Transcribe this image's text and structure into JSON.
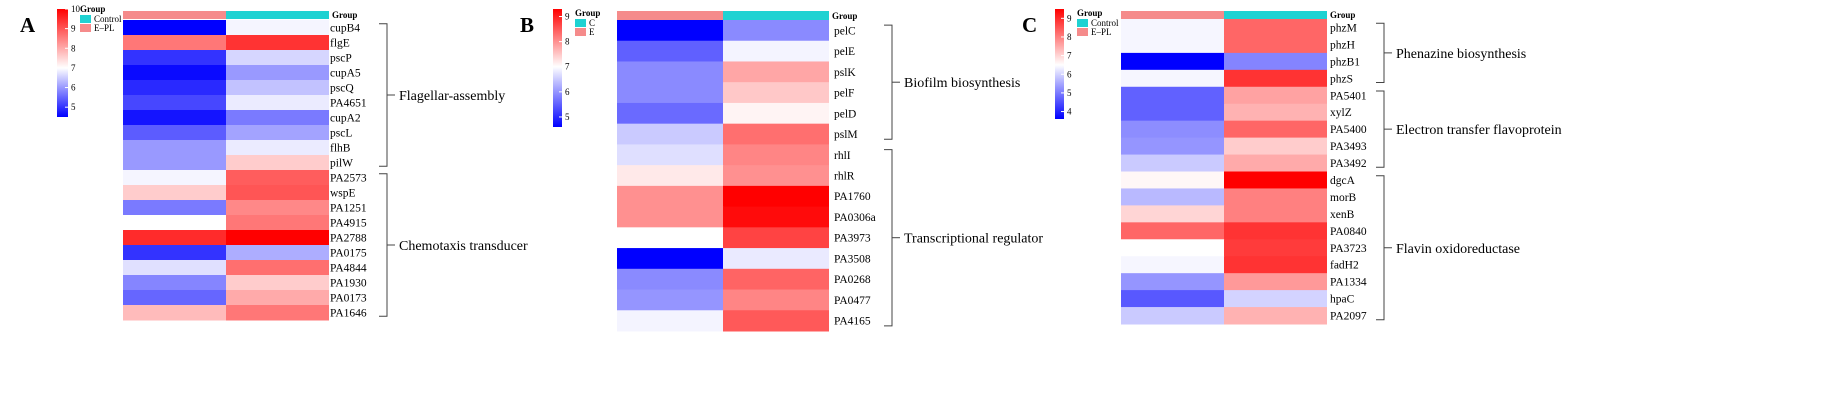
{
  "colors": {
    "low": "#0000ff",
    "mid": "#ffffff",
    "high": "#ff0000",
    "group_control": "#1fd2d2",
    "group_treated": "#f58b8b"
  },
  "chart_data": [
    {
      "type": "heatmap",
      "panel_label": "A",
      "legend_title": "Group",
      "groups": [
        "Control",
        "E–PL"
      ],
      "group_header_label": "Group",
      "color_scale": {
        "min": 4.5,
        "mid": 7,
        "max": 10,
        "ticks": [
          10,
          9,
          8,
          7,
          6,
          5
        ]
      },
      "rows": [
        "cupB4",
        "flgE",
        "pscP",
        "cupA5",
        "pscQ",
        "PA4651",
        "cupA2",
        "pscL",
        "flhB",
        "pilW",
        "PA2573",
        "wspE",
        "PA1251",
        "PA4915",
        "PA2788",
        "PA0175",
        "PA4844",
        "PA1930",
        "PA0173",
        "PA1646"
      ],
      "values": [
        [
          4.5,
          6.9
        ],
        [
          8.6,
          9.4
        ],
        [
          5.0,
          6.6
        ],
        [
          4.6,
          6.0
        ],
        [
          4.9,
          6.4
        ],
        [
          5.2,
          6.8
        ],
        [
          4.7,
          5.7
        ],
        [
          5.4,
          6.1
        ],
        [
          6.0,
          6.8
        ],
        [
          6.0,
          7.6
        ],
        [
          6.9,
          8.9
        ],
        [
          7.6,
          9.0
        ],
        [
          5.7,
          8.4
        ],
        [
          7.0,
          8.6
        ],
        [
          9.5,
          10.0
        ],
        [
          5.0,
          6.2
        ],
        [
          6.7,
          8.7
        ],
        [
          5.8,
          7.6
        ],
        [
          5.5,
          8.0
        ],
        [
          7.8,
          8.6
        ]
      ],
      "groupings": [
        {
          "label": "Flagellar-assembly",
          "start": 0,
          "end": 9
        },
        {
          "label": "Chemotaxis transducer",
          "start": 10,
          "end": 19
        }
      ]
    },
    {
      "type": "heatmap",
      "panel_label": "B",
      "legend_title": "Group",
      "groups": [
        "C",
        "E"
      ],
      "group_header_label": "Group",
      "color_scale": {
        "min": 4.6,
        "mid": 7,
        "max": 9.3,
        "ticks": [
          9,
          8,
          7,
          6,
          5
        ]
      },
      "rows": [
        "pelC",
        "pelE",
        "pslK",
        "pelF",
        "pelD",
        "pslM",
        "rhlI",
        "rhlR",
        "PA1760",
        "PA0306a",
        "PA3973",
        "PA3508",
        "PA0268",
        "PA0477",
        "PA4165"
      ],
      "values": [
        [
          4.6,
          5.9
        ],
        [
          5.5,
          6.9
        ],
        [
          5.9,
          7.8
        ],
        [
          5.9,
          7.5
        ],
        [
          5.6,
          7.1
        ],
        [
          6.5,
          8.3
        ],
        [
          6.7,
          8.1
        ],
        [
          7.2,
          8.0
        ],
        [
          8.0,
          9.3
        ],
        [
          8.0,
          9.2
        ],
        [
          7.0,
          8.7
        ],
        [
          4.6,
          6.8
        ],
        [
          5.9,
          8.4
        ],
        [
          6.0,
          8.1
        ],
        [
          6.9,
          8.5
        ]
      ],
      "groupings": [
        {
          "label": "Biofilm biosynthesis",
          "start": 0,
          "end": 5
        },
        {
          "label": "Transcriptional regulator",
          "start": 6,
          "end": 14
        }
      ]
    },
    {
      "type": "heatmap",
      "panel_label": "C",
      "legend_title": "Group",
      "groups": [
        "Control",
        "E–PL"
      ],
      "group_header_label": "Group",
      "color_scale": {
        "min": 3.6,
        "mid": 6.5,
        "max": 9.5,
        "ticks": [
          9,
          8,
          7,
          6,
          5,
          4
        ]
      },
      "rows": [
        "phzM",
        "phzH",
        "phzB1",
        "phzS",
        "PA5401",
        "xylZ",
        "PA5400",
        "PA3493",
        "PA3492",
        "dgcA",
        "morB",
        "xenB",
        "PA0840",
        "PA3723",
        "fadH2",
        "PA1334",
        "hpaC",
        "PA2097"
      ],
      "values": [
        [
          6.4,
          8.3
        ],
        [
          6.4,
          8.3
        ],
        [
          3.6,
          5.1
        ],
        [
          6.4,
          8.9
        ],
        [
          4.7,
          7.6
        ],
        [
          4.7,
          7.4
        ],
        [
          5.2,
          8.3
        ],
        [
          5.3,
          7.1
        ],
        [
          5.9,
          7.5
        ],
        [
          6.6,
          9.5
        ],
        [
          5.7,
          8.0
        ],
        [
          7.0,
          8.0
        ],
        [
          8.3,
          8.9
        ],
        [
          6.5,
          8.8
        ],
        [
          6.4,
          8.9
        ],
        [
          5.3,
          7.7
        ],
        [
          4.6,
          6.0
        ],
        [
          5.9,
          7.4
        ]
      ],
      "groupings": [
        {
          "label": "Phenazine biosynthesis",
          "start": 0,
          "end": 3
        },
        {
          "label": "Electron transfer flavoprotein",
          "start": 4,
          "end": 8
        },
        {
          "label": "Flavin oxidoreductase",
          "start": 9,
          "end": 17
        }
      ]
    }
  ]
}
